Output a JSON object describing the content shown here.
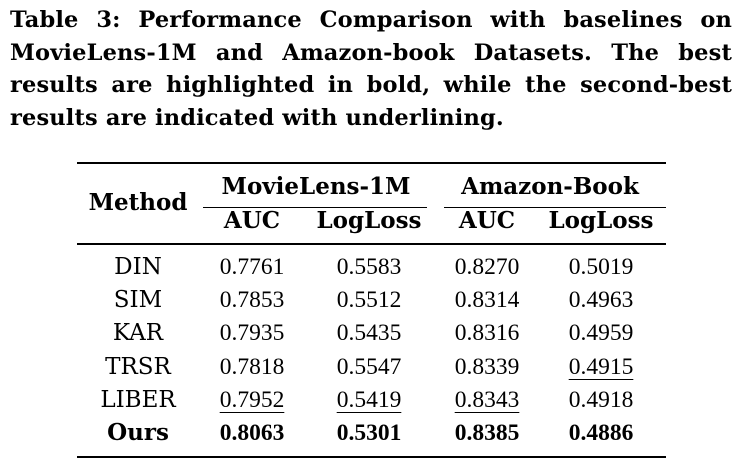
{
  "caption": "Table 3: Performance Comparison with baselines on MovieLens-1M and Amazon-book Datasets. The best results are highlighted in bold, while the second-best results are indicated with underlining.",
  "table": {
    "method_header": "Method",
    "groups": [
      "MovieLens-1M",
      "Amazon-Book"
    ],
    "subheaders": [
      "AUC",
      "LogLoss",
      "AUC",
      "LogLoss"
    ],
    "rows": [
      {
        "method": "DIN",
        "values": [
          "0.7761",
          "0.5583",
          "0.8270",
          "0.5019"
        ],
        "style": [
          "",
          "",
          "",
          ""
        ]
      },
      {
        "method": "SIM",
        "values": [
          "0.7853",
          "0.5512",
          "0.8314",
          "0.4963"
        ],
        "style": [
          "",
          "",
          "",
          ""
        ]
      },
      {
        "method": "KAR",
        "values": [
          "0.7935",
          "0.5435",
          "0.8316",
          "0.4959"
        ],
        "style": [
          "",
          "",
          "",
          ""
        ]
      },
      {
        "method": "TRSR",
        "values": [
          "0.7818",
          "0.5547",
          "0.8339",
          "0.4915"
        ],
        "style": [
          "",
          "",
          "",
          "second"
        ]
      },
      {
        "method": "LIBER",
        "values": [
          "0.7952",
          "0.5419",
          "0.8343",
          "0.4918"
        ],
        "style": [
          "second",
          "second",
          "second",
          ""
        ]
      },
      {
        "method": "Ours",
        "values": [
          "0.8063",
          "0.5301",
          "0.8385",
          "0.4886"
        ],
        "style": [
          "best",
          "best",
          "best",
          "best"
        ],
        "method_bold": true
      }
    ]
  }
}
